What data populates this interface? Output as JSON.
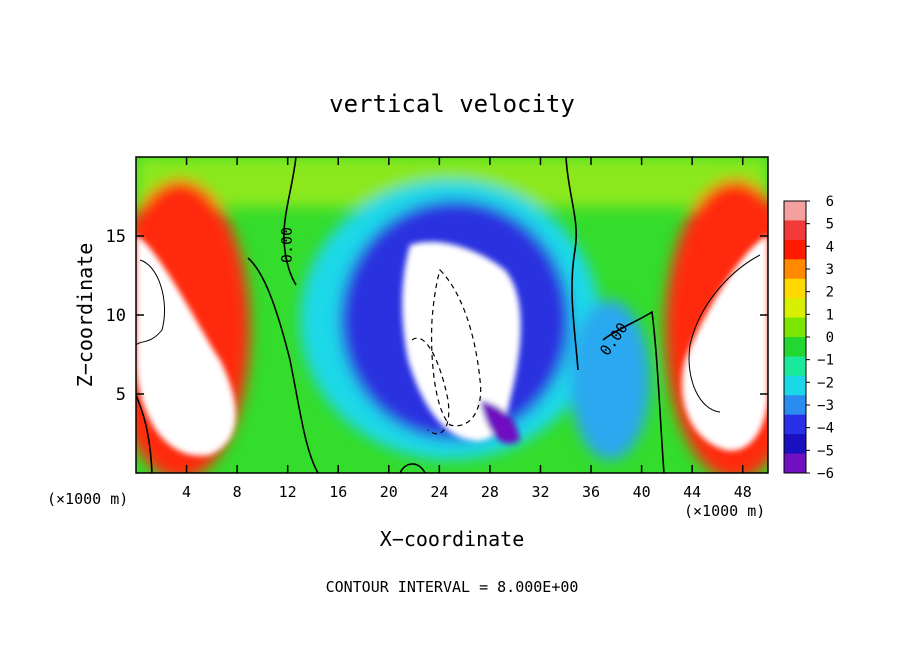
{
  "chart_data": {
    "type": "heatmap",
    "title": "vertical velocity",
    "xlabel": "X−coordinate",
    "ylabel": "Z−coordinate",
    "x_unit_left": "(×1000 m)",
    "x_unit_right": "(×1000 m)",
    "xlim": [
      0,
      50
    ],
    "ylim": [
      0,
      20
    ],
    "x_ticks": [
      4,
      8,
      12,
      16,
      20,
      24,
      28,
      32,
      36,
      40,
      44,
      48
    ],
    "y_ticks": [
      5,
      10,
      15
    ],
    "colorbar": {
      "ticks": [
        6,
        5,
        4,
        3,
        2,
        1,
        0,
        -1,
        -2,
        -3,
        -4,
        -5,
        -6
      ],
      "tick_labels": [
        "6",
        "5",
        "4",
        "3",
        "2",
        "1",
        "0",
        "−1",
        "−2",
        "−3",
        "−4",
        "−5",
        "−6"
      ],
      "colors": [
        "#f4a0a0",
        "#f23a3a",
        "#ff1a00",
        "#ff8a00",
        "#ffd800",
        "#d8f000",
        "#7ce600",
        "#22d830",
        "#1ae89a",
        "#1ad8e8",
        "#2a8cf0",
        "#2830e8",
        "#1a10c0",
        "#7010c0"
      ]
    },
    "contour_labels": [
      "0.00",
      "0.00"
    ],
    "footer": "CONTOUR INTERVAL = 8.000E+00"
  }
}
